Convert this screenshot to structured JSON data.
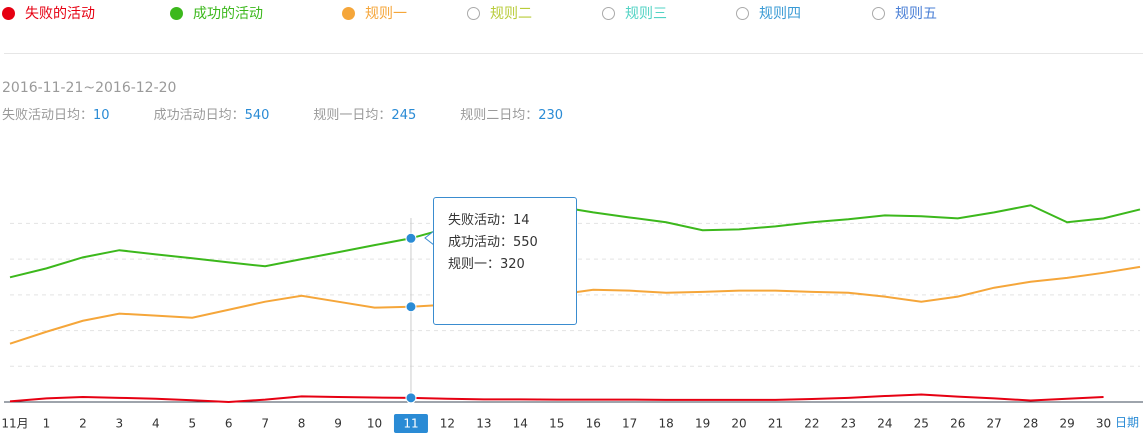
{
  "date_range": "2016-11-21~2016-12-20",
  "stats": [
    {
      "label": "失败活动日均：",
      "value": 10
    },
    {
      "label": "成功活动日均：",
      "value": 540
    },
    {
      "label": "规则一日均：",
      "value": 245
    },
    {
      "label": "规则二日均：",
      "value": 230
    }
  ],
  "inactive_series": [
    {
      "name": "规则二",
      "color": "#b9cc3a"
    },
    {
      "name": "规则三",
      "color": "#52d3c4"
    },
    {
      "name": "规则四",
      "color": "#3a9bd5"
    },
    {
      "name": "规则五",
      "color": "#4a7fd6"
    }
  ],
  "chart_data": {
    "type": "line",
    "categories": [
      "11月",
      "1",
      "2",
      "3",
      "4",
      "5",
      "6",
      "7",
      "8",
      "9",
      "10",
      "11",
      "12",
      "13",
      "14",
      "15",
      "16",
      "17",
      "18",
      "19",
      "20",
      "21",
      "22",
      "23",
      "24",
      "25",
      "26",
      "27",
      "28",
      "29",
      "30",
      null
    ],
    "x_label": "日期",
    "highlight_index": 11,
    "ylim": [
      0,
      850
    ],
    "yticks": [
      120,
      240,
      360,
      480,
      600
    ],
    "grid": true,
    "series": [
      {
        "name": "失败的活动",
        "color": "#e60012",
        "values": [
          2,
          12,
          17,
          14,
          11,
          6,
          0,
          8,
          19,
          17,
          15,
          14,
          11,
          9,
          9,
          8,
          8,
          8,
          7,
          7,
          7,
          7,
          10,
          14,
          20,
          25,
          18,
          12,
          5,
          11,
          17,
          null
        ]
      },
      {
        "name": "成功的活动",
        "color": "#3cb81c",
        "values": [
          419,
          449,
          486,
          510,
          496,
          483,
          469,
          456,
          480,
          503,
          527,
          550,
          584,
          617,
          641,
          657,
          637,
          620,
          604,
          577,
          580,
          590,
          604,
          614,
          627,
          624,
          617,
          637,
          661,
          604,
          617,
          647
        ]
      },
      {
        "name": "规则一",
        "color": "#f5a63a",
        "values": [
          196,
          236,
          273,
          297,
          290,
          283,
          310,
          337,
          357,
          337,
          317,
          320,
          327,
          333,
          347,
          360,
          377,
          374,
          367,
          370,
          374,
          374,
          370,
          367,
          354,
          337,
          354,
          384,
          404,
          417,
          434,
          454
        ]
      }
    ],
    "tooltip": {
      "index": 11,
      "items": [
        {
          "label": "失败活动：",
          "value": 14
        },
        {
          "label": "成功活动：",
          "value": 550
        },
        {
          "label": "规则一：",
          "value": 320
        }
      ]
    }
  }
}
